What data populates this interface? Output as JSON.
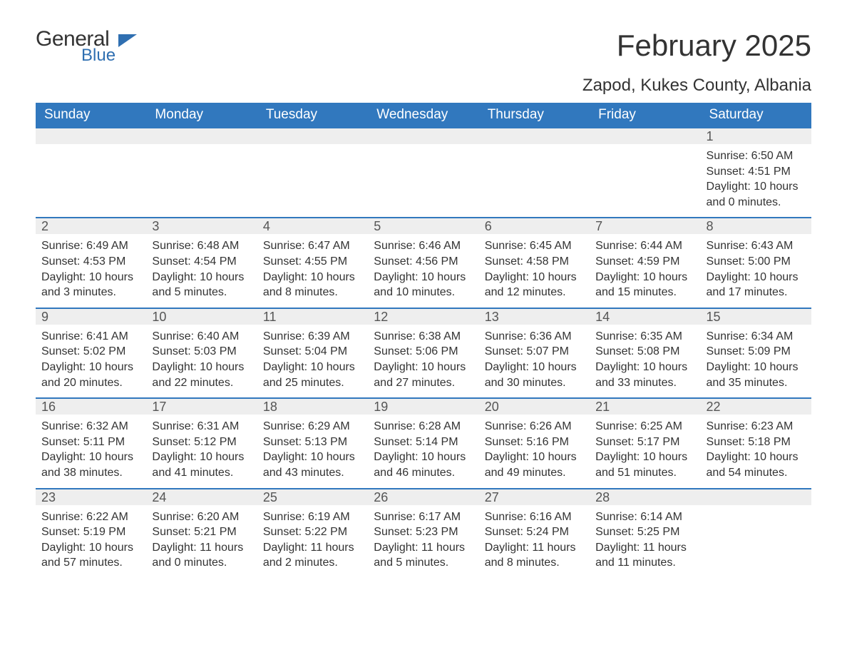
{
  "logo": {
    "word1": "General",
    "word2": "Blue"
  },
  "title": "February 2025",
  "location": "Zapod, Kukes County, Albania",
  "colors": {
    "header_bg": "#3178be",
    "header_text": "#ffffff",
    "row_border": "#3178be",
    "daybar_bg": "#eeeeee",
    "text": "#333333",
    "logo_blue": "#2f6fb1",
    "background": "#ffffff"
  },
  "typography": {
    "title_fontsize": 42,
    "location_fontsize": 24,
    "weekday_fontsize": 19,
    "daynum_fontsize": 18,
    "info_fontsize": 16
  },
  "layout": {
    "columns": 7,
    "rows": 5,
    "start_day_index": 6
  },
  "weekdays": [
    "Sunday",
    "Monday",
    "Tuesday",
    "Wednesday",
    "Thursday",
    "Friday",
    "Saturday"
  ],
  "days": [
    {
      "n": 1,
      "sunrise": "6:50 AM",
      "sunset": "4:51 PM",
      "daylight": "10 hours and 0 minutes."
    },
    {
      "n": 2,
      "sunrise": "6:49 AM",
      "sunset": "4:53 PM",
      "daylight": "10 hours and 3 minutes."
    },
    {
      "n": 3,
      "sunrise": "6:48 AM",
      "sunset": "4:54 PM",
      "daylight": "10 hours and 5 minutes."
    },
    {
      "n": 4,
      "sunrise": "6:47 AM",
      "sunset": "4:55 PM",
      "daylight": "10 hours and 8 minutes."
    },
    {
      "n": 5,
      "sunrise": "6:46 AM",
      "sunset": "4:56 PM",
      "daylight": "10 hours and 10 minutes."
    },
    {
      "n": 6,
      "sunrise": "6:45 AM",
      "sunset": "4:58 PM",
      "daylight": "10 hours and 12 minutes."
    },
    {
      "n": 7,
      "sunrise": "6:44 AM",
      "sunset": "4:59 PM",
      "daylight": "10 hours and 15 minutes."
    },
    {
      "n": 8,
      "sunrise": "6:43 AM",
      "sunset": "5:00 PM",
      "daylight": "10 hours and 17 minutes."
    },
    {
      "n": 9,
      "sunrise": "6:41 AM",
      "sunset": "5:02 PM",
      "daylight": "10 hours and 20 minutes."
    },
    {
      "n": 10,
      "sunrise": "6:40 AM",
      "sunset": "5:03 PM",
      "daylight": "10 hours and 22 minutes."
    },
    {
      "n": 11,
      "sunrise": "6:39 AM",
      "sunset": "5:04 PM",
      "daylight": "10 hours and 25 minutes."
    },
    {
      "n": 12,
      "sunrise": "6:38 AM",
      "sunset": "5:06 PM",
      "daylight": "10 hours and 27 minutes."
    },
    {
      "n": 13,
      "sunrise": "6:36 AM",
      "sunset": "5:07 PM",
      "daylight": "10 hours and 30 minutes."
    },
    {
      "n": 14,
      "sunrise": "6:35 AM",
      "sunset": "5:08 PM",
      "daylight": "10 hours and 33 minutes."
    },
    {
      "n": 15,
      "sunrise": "6:34 AM",
      "sunset": "5:09 PM",
      "daylight": "10 hours and 35 minutes."
    },
    {
      "n": 16,
      "sunrise": "6:32 AM",
      "sunset": "5:11 PM",
      "daylight": "10 hours and 38 minutes."
    },
    {
      "n": 17,
      "sunrise": "6:31 AM",
      "sunset": "5:12 PM",
      "daylight": "10 hours and 41 minutes."
    },
    {
      "n": 18,
      "sunrise": "6:29 AM",
      "sunset": "5:13 PM",
      "daylight": "10 hours and 43 minutes."
    },
    {
      "n": 19,
      "sunrise": "6:28 AM",
      "sunset": "5:14 PM",
      "daylight": "10 hours and 46 minutes."
    },
    {
      "n": 20,
      "sunrise": "6:26 AM",
      "sunset": "5:16 PM",
      "daylight": "10 hours and 49 minutes."
    },
    {
      "n": 21,
      "sunrise": "6:25 AM",
      "sunset": "5:17 PM",
      "daylight": "10 hours and 51 minutes."
    },
    {
      "n": 22,
      "sunrise": "6:23 AM",
      "sunset": "5:18 PM",
      "daylight": "10 hours and 54 minutes."
    },
    {
      "n": 23,
      "sunrise": "6:22 AM",
      "sunset": "5:19 PM",
      "daylight": "10 hours and 57 minutes."
    },
    {
      "n": 24,
      "sunrise": "6:20 AM",
      "sunset": "5:21 PM",
      "daylight": "11 hours and 0 minutes."
    },
    {
      "n": 25,
      "sunrise": "6:19 AM",
      "sunset": "5:22 PM",
      "daylight": "11 hours and 2 minutes."
    },
    {
      "n": 26,
      "sunrise": "6:17 AM",
      "sunset": "5:23 PM",
      "daylight": "11 hours and 5 minutes."
    },
    {
      "n": 27,
      "sunrise": "6:16 AM",
      "sunset": "5:24 PM",
      "daylight": "11 hours and 8 minutes."
    },
    {
      "n": 28,
      "sunrise": "6:14 AM",
      "sunset": "5:25 PM",
      "daylight": "11 hours and 11 minutes."
    }
  ],
  "labels": {
    "sunrise": "Sunrise:",
    "sunset": "Sunset:",
    "daylight": "Daylight:"
  }
}
